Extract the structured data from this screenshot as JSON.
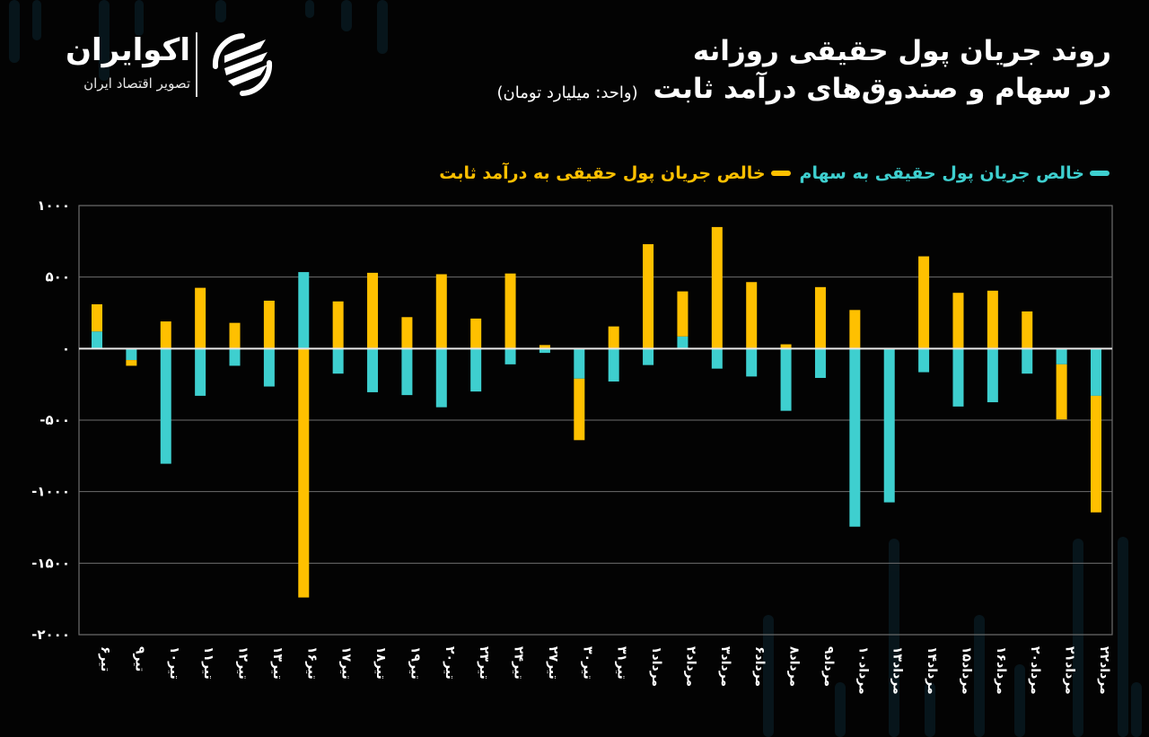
{
  "brand": {
    "name": "اکوایران",
    "tagline": "تصویر اقتصاد ایران"
  },
  "header": {
    "title_line1": "روند جریان پول حقیقی روزانه",
    "title_line2": "در سهام و صندوق‌های درآمد ثابت",
    "unit_label": "(واحد: میلیارد تومان)"
  },
  "colors": {
    "stocks": "#3ECFCF",
    "fixed_income": "#FFC000",
    "background": "#030303",
    "grid": "#6e6e6e",
    "zero_line": "#e8e8e8"
  },
  "legend": {
    "stocks_label": "خالص جریان پول حقیقی به سهام",
    "fixed_income_label": "خالص جریان پول حقیقی به درآمد ثابت"
  },
  "chart_data": {
    "type": "bar",
    "stacked": true,
    "title": "روند جریان پول حقیقی روزانه در سهام و صندوق‌های درآمد ثابت",
    "subtitle": "(واحد: میلیارد تومان)",
    "xlabel": "",
    "ylabel": "میلیارد تومان",
    "ylim": [
      -2000,
      1000
    ],
    "yticks": [
      1000,
      500,
      0,
      -500,
      -1000,
      -1500,
      -2000
    ],
    "ytick_labels": [
      "۱۰۰۰",
      "۵۰۰",
      "۰",
      "-۵۰۰",
      "-۱۰۰۰",
      "-۱۵۰۰",
      "-۲۰۰۰"
    ],
    "grid": true,
    "legend_position": "top",
    "categories": [
      "تیر۶",
      "تیر۹",
      "تیر۱۰",
      "تیر۱۱",
      "تیر۱۲",
      "تیر۱۳",
      "تیر۱۶",
      "تیر۱۷",
      "تیر۱۸",
      "تیر۱۹",
      "تیر۲۰",
      "تیر۲۳",
      "تیر۲۴",
      "تیر۲۷",
      "تیر۳۰",
      "تیر۳۱",
      "مرداد۱",
      "مرداد۲",
      "مرداد۳",
      "مرداد۶",
      "مرداد۸",
      "مرداد۹",
      "مرداد۱۰",
      "مرداد۱۳",
      "مرداد۱۴",
      "مرداد۱۵",
      "مرداد۱۶",
      "مرداد۲۰",
      "مرداد۲۱",
      "مرداد۲۲"
    ],
    "series": [
      {
        "name": "خالص جریان پول حقیقی به سهام",
        "color": "#3ECFCF",
        "values": [
          120,
          -80,
          -805,
          -330,
          -120,
          -265,
          535,
          -175,
          -305,
          -325,
          -410,
          -300,
          -110,
          -30,
          -210,
          -230,
          -115,
          85,
          -140,
          -195,
          -435,
          -205,
          -1245,
          -1075,
          -165,
          -405,
          -375,
          -175,
          -110,
          -330
        ]
      },
      {
        "name": "خالص جریان پول حقیقی به درآمد ثابت",
        "color": "#FFC000",
        "values": [
          190,
          -40,
          190,
          425,
          180,
          335,
          -1740,
          330,
          530,
          220,
          520,
          210,
          525,
          25,
          -430,
          155,
          730,
          315,
          850,
          465,
          30,
          430,
          270,
          5,
          645,
          390,
          405,
          260,
          -385,
          -815
        ]
      }
    ]
  }
}
